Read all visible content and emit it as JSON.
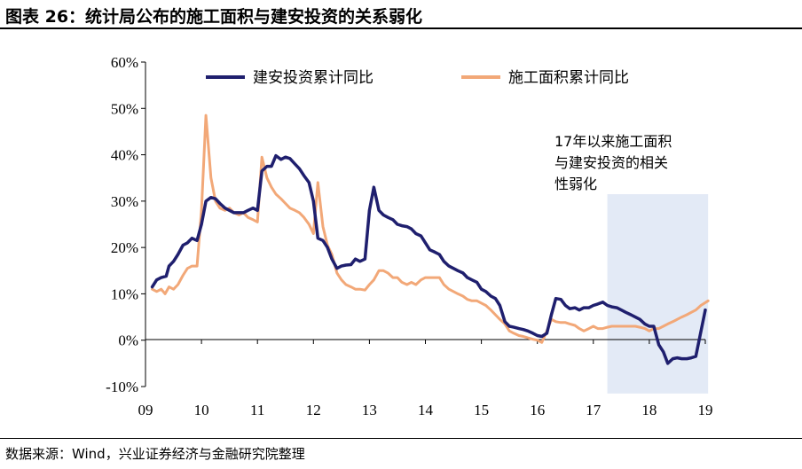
{
  "header": {
    "title": "图表 26：统计局公布的施工面积与建安投资的关系弱化"
  },
  "footer": {
    "source": "数据来源：Wind，兴业证券经济与金融研究院整理"
  },
  "chart_data": {
    "type": "line",
    "title": "图表 26：统计局公布的施工面积与建安投资的关系弱化",
    "xlabel": "",
    "ylabel": "",
    "x_ticks": [
      "09",
      "10",
      "11",
      "12",
      "13",
      "14",
      "15",
      "16",
      "17",
      "18",
      "19"
    ],
    "y_ticks": [
      "-10%",
      "0%",
      "10%",
      "20%",
      "30%",
      "40%",
      "50%",
      "60%"
    ],
    "ylim": [
      -10,
      60
    ],
    "xlim": [
      2009.0,
      2019.0
    ],
    "grid": false,
    "legend": "top",
    "annotation": {
      "lines": [
        "17年以来施工面积",
        "与建安投资的相关",
        "性弱化"
      ],
      "shaded_range": [
        2017.25,
        2019.05
      ]
    },
    "series": [
      {
        "name": "建安投资累计同比",
        "color": "#1f1f6e",
        "points": [
          [
            2009.12,
            11.5
          ],
          [
            2009.2,
            13.0
          ],
          [
            2009.28,
            13.5
          ],
          [
            2009.37,
            13.8
          ],
          [
            2009.42,
            16.0
          ],
          [
            2009.5,
            17.0
          ],
          [
            2009.58,
            18.5
          ],
          [
            2009.67,
            20.5
          ],
          [
            2009.75,
            21.0
          ],
          [
            2009.83,
            22.0
          ],
          [
            2009.92,
            21.5
          ],
          [
            2010.0,
            25.0
          ],
          [
            2010.08,
            30.0
          ],
          [
            2010.17,
            30.8
          ],
          [
            2010.25,
            30.5
          ],
          [
            2010.33,
            29.5
          ],
          [
            2010.42,
            28.5
          ],
          [
            2010.5,
            28.0
          ],
          [
            2010.58,
            27.5
          ],
          [
            2010.67,
            27.5
          ],
          [
            2010.75,
            27.5
          ],
          [
            2010.83,
            28.0
          ],
          [
            2010.92,
            28.5
          ],
          [
            2011.0,
            28.0
          ],
          [
            2011.08,
            36.5
          ],
          [
            2011.17,
            37.5
          ],
          [
            2011.25,
            37.5
          ],
          [
            2011.33,
            39.8
          ],
          [
            2011.42,
            39.0
          ],
          [
            2011.5,
            39.5
          ],
          [
            2011.58,
            39.2
          ],
          [
            2011.67,
            38.0
          ],
          [
            2011.75,
            37.0
          ],
          [
            2011.83,
            35.5
          ],
          [
            2011.92,
            34.0
          ],
          [
            2012.0,
            30.0
          ],
          [
            2012.08,
            22.0
          ],
          [
            2012.17,
            21.5
          ],
          [
            2012.25,
            20.0
          ],
          [
            2012.33,
            17.5
          ],
          [
            2012.42,
            15.5
          ],
          [
            2012.5,
            16.0
          ],
          [
            2012.58,
            16.2
          ],
          [
            2012.67,
            16.3
          ],
          [
            2012.75,
            17.5
          ],
          [
            2012.83,
            17.0
          ],
          [
            2012.92,
            17.5
          ],
          [
            2013.0,
            28.0
          ],
          [
            2013.08,
            33.0
          ],
          [
            2013.17,
            28.0
          ],
          [
            2013.25,
            27.0
          ],
          [
            2013.33,
            26.5
          ],
          [
            2013.42,
            26.0
          ],
          [
            2013.5,
            25.0
          ],
          [
            2013.58,
            24.7
          ],
          [
            2013.67,
            24.5
          ],
          [
            2013.75,
            24.0
          ],
          [
            2013.83,
            23.0
          ],
          [
            2013.92,
            22.5
          ],
          [
            2014.0,
            21.0
          ],
          [
            2014.08,
            19.5
          ],
          [
            2014.17,
            19.0
          ],
          [
            2014.25,
            18.5
          ],
          [
            2014.33,
            17.0
          ],
          [
            2014.42,
            16.0
          ],
          [
            2014.5,
            15.5
          ],
          [
            2014.58,
            15.0
          ],
          [
            2014.67,
            14.5
          ],
          [
            2014.75,
            13.5
          ],
          [
            2014.83,
            13.0
          ],
          [
            2014.92,
            12.5
          ],
          [
            2015.0,
            11.0
          ],
          [
            2015.08,
            10.5
          ],
          [
            2015.17,
            9.5
          ],
          [
            2015.25,
            9.0
          ],
          [
            2015.33,
            7.5
          ],
          [
            2015.42,
            4.0
          ],
          [
            2015.5,
            3.0
          ],
          [
            2015.58,
            2.8
          ],
          [
            2015.67,
            2.5
          ],
          [
            2015.75,
            2.3
          ],
          [
            2015.83,
            2.0
          ],
          [
            2015.92,
            1.5
          ],
          [
            2016.0,
            1.0
          ],
          [
            2016.08,
            0.8
          ],
          [
            2016.17,
            1.5
          ],
          [
            2016.25,
            5.5
          ],
          [
            2016.33,
            9.0
          ],
          [
            2016.42,
            8.8
          ],
          [
            2016.5,
            7.5
          ],
          [
            2016.58,
            6.8
          ],
          [
            2016.67,
            7.0
          ],
          [
            2016.75,
            6.5
          ],
          [
            2016.83,
            7.0
          ],
          [
            2016.92,
            7.0
          ],
          [
            2017.0,
            7.5
          ],
          [
            2017.08,
            7.8
          ],
          [
            2017.17,
            8.2
          ],
          [
            2017.25,
            7.5
          ],
          [
            2017.33,
            7.2
          ],
          [
            2017.42,
            7.0
          ],
          [
            2017.5,
            6.5
          ],
          [
            2017.58,
            6.0
          ],
          [
            2017.67,
            5.5
          ],
          [
            2017.75,
            5.0
          ],
          [
            2017.83,
            4.5
          ],
          [
            2017.92,
            3.5
          ],
          [
            2018.0,
            3.0
          ],
          [
            2018.08,
            3.0
          ],
          [
            2018.17,
            -1.0
          ],
          [
            2018.25,
            -2.5
          ],
          [
            2018.33,
            -5.0
          ],
          [
            2018.42,
            -4.0
          ],
          [
            2018.5,
            -3.8
          ],
          [
            2018.58,
            -4.0
          ],
          [
            2018.67,
            -4.0
          ],
          [
            2018.75,
            -3.8
          ],
          [
            2018.83,
            -3.5
          ],
          [
            2019.0,
            6.5
          ]
        ]
      },
      {
        "name": "施工面积累计同比",
        "color": "#f2a878",
        "points": [
          [
            2009.12,
            11.0
          ],
          [
            2009.2,
            10.5
          ],
          [
            2009.28,
            11.0
          ],
          [
            2009.35,
            10.0
          ],
          [
            2009.42,
            11.5
          ],
          [
            2009.5,
            11.0
          ],
          [
            2009.58,
            12.0
          ],
          [
            2009.67,
            14.0
          ],
          [
            2009.75,
            15.5
          ],
          [
            2009.83,
            16.0
          ],
          [
            2009.92,
            16.0
          ],
          [
            2010.0,
            28.0
          ],
          [
            2010.08,
            48.5
          ],
          [
            2010.17,
            35.0
          ],
          [
            2010.25,
            30.0
          ],
          [
            2010.33,
            28.5
          ],
          [
            2010.42,
            28.0
          ],
          [
            2010.5,
            28.5
          ],
          [
            2010.58,
            27.5
          ],
          [
            2010.67,
            27.0
          ],
          [
            2010.75,
            27.5
          ],
          [
            2010.83,
            26.5
          ],
          [
            2010.92,
            26.0
          ],
          [
            2011.0,
            25.5
          ],
          [
            2011.08,
            39.5
          ],
          [
            2011.17,
            35.0
          ],
          [
            2011.25,
            33.0
          ],
          [
            2011.33,
            31.5
          ],
          [
            2011.42,
            30.5
          ],
          [
            2011.5,
            29.5
          ],
          [
            2011.58,
            28.5
          ],
          [
            2011.67,
            28.0
          ],
          [
            2011.75,
            27.5
          ],
          [
            2011.83,
            26.5
          ],
          [
            2011.92,
            25.0
          ],
          [
            2012.0,
            23.0
          ],
          [
            2012.08,
            34.0
          ],
          [
            2012.17,
            24.5
          ],
          [
            2012.25,
            20.5
          ],
          [
            2012.33,
            18.5
          ],
          [
            2012.42,
            14.5
          ],
          [
            2012.5,
            13.0
          ],
          [
            2012.58,
            12.0
          ],
          [
            2012.67,
            11.5
          ],
          [
            2012.75,
            11.0
          ],
          [
            2012.83,
            11.0
          ],
          [
            2012.92,
            10.8
          ],
          [
            2013.0,
            12.0
          ],
          [
            2013.08,
            13.0
          ],
          [
            2013.17,
            15.0
          ],
          [
            2013.25,
            15.0
          ],
          [
            2013.33,
            14.5
          ],
          [
            2013.42,
            13.5
          ],
          [
            2013.5,
            13.5
          ],
          [
            2013.58,
            12.5
          ],
          [
            2013.67,
            12.0
          ],
          [
            2013.75,
            12.5
          ],
          [
            2013.83,
            12.0
          ],
          [
            2013.92,
            13.0
          ],
          [
            2014.0,
            13.5
          ],
          [
            2014.08,
            13.5
          ],
          [
            2014.17,
            13.5
          ],
          [
            2014.25,
            13.5
          ],
          [
            2014.33,
            12.0
          ],
          [
            2014.42,
            11.0
          ],
          [
            2014.5,
            10.5
          ],
          [
            2014.58,
            10.0
          ],
          [
            2014.67,
            9.5
          ],
          [
            2014.75,
            8.8
          ],
          [
            2014.83,
            8.5
          ],
          [
            2014.92,
            8.5
          ],
          [
            2015.0,
            8.0
          ],
          [
            2015.08,
            7.5
          ],
          [
            2015.17,
            6.5
          ],
          [
            2015.25,
            5.5
          ],
          [
            2015.33,
            4.5
          ],
          [
            2015.42,
            3.5
          ],
          [
            2015.5,
            2.0
          ],
          [
            2015.58,
            1.5
          ],
          [
            2015.67,
            1.0
          ],
          [
            2015.75,
            0.8
          ],
          [
            2015.83,
            0.5
          ],
          [
            2015.92,
            0.2
          ],
          [
            2016.0,
            0.0
          ],
          [
            2016.08,
            -0.5
          ],
          [
            2016.17,
            2.0
          ],
          [
            2016.25,
            4.5
          ],
          [
            2016.33,
            4.0
          ],
          [
            2016.42,
            3.8
          ],
          [
            2016.5,
            3.8
          ],
          [
            2016.58,
            3.5
          ],
          [
            2016.67,
            3.2
          ],
          [
            2016.75,
            2.5
          ],
          [
            2016.83,
            2.0
          ],
          [
            2016.92,
            2.5
          ],
          [
            2017.0,
            3.0
          ],
          [
            2017.08,
            2.5
          ],
          [
            2017.17,
            2.5
          ],
          [
            2017.25,
            2.8
          ],
          [
            2017.33,
            3.0
          ],
          [
            2017.42,
            3.0
          ],
          [
            2017.5,
            3.0
          ],
          [
            2017.58,
            3.0
          ],
          [
            2017.67,
            3.0
          ],
          [
            2017.75,
            3.0
          ],
          [
            2017.83,
            2.8
          ],
          [
            2017.92,
            2.5
          ],
          [
            2018.0,
            2.0
          ],
          [
            2018.08,
            2.5
          ],
          [
            2018.17,
            2.5
          ],
          [
            2018.25,
            3.0
          ],
          [
            2018.33,
            3.5
          ],
          [
            2018.42,
            4.0
          ],
          [
            2018.5,
            4.5
          ],
          [
            2018.58,
            5.0
          ],
          [
            2018.67,
            5.5
          ],
          [
            2018.75,
            6.0
          ],
          [
            2018.83,
            6.5
          ],
          [
            2018.92,
            7.5
          ],
          [
            2019.05,
            8.5
          ]
        ]
      }
    ]
  }
}
